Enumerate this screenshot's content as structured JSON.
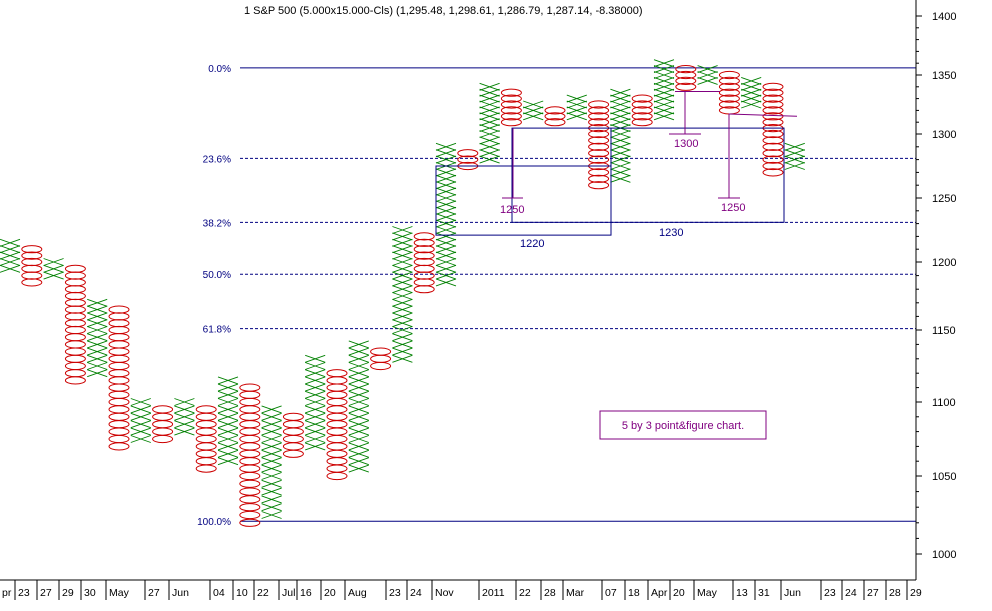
{
  "chart_data": {
    "type": "point-and-figure",
    "title": "1 S&P 500 (5.000x15.000-Cls) (1,295.48, 1,298.61, 1,286.79, 1,287.14, -8.38000)",
    "box_size": 5,
    "reversal": 3,
    "y_axis": {
      "position": "right",
      "ticks": [
        "1400",
        "1350",
        "1300",
        "1250",
        "1200",
        "1150",
        "1100",
        "1050",
        "1000"
      ]
    },
    "x_axis": {
      "tick_labels": [
        "pr",
        "23",
        "27",
        "29",
        "30",
        "May",
        "27",
        "Jun",
        "04",
        "10",
        "22",
        "Jul",
        "16",
        "20",
        "Aug",
        "23",
        "24",
        "Nov",
        "2011",
        "22",
        "28",
        "Mar",
        "07",
        "18",
        "Apr",
        "20",
        "May",
        "13",
        "31",
        "Jun",
        "23",
        "24",
        "27",
        "28",
        "29"
      ]
    },
    "fibonacci": {
      "levels": [
        {
          "label": "0.0%",
          "price": 1356,
          "style": "solid"
        },
        {
          "label": "23.6%",
          "price": 1281,
          "style": "dashed"
        },
        {
          "label": "38.2%",
          "price": 1231,
          "style": "dashed"
        },
        {
          "label": "50.0%",
          "price": 1191,
          "style": "dashed"
        },
        {
          "label": "61.8%",
          "price": 1151,
          "style": "dashed"
        },
        {
          "label": "100.0%",
          "price": 1021,
          "style": "solid"
        }
      ]
    },
    "columns": [
      {
        "type": "X",
        "low": 1195,
        "high": 1215
      },
      {
        "type": "O",
        "low": 1185,
        "high": 1210
      },
      {
        "type": "X",
        "low": 1190,
        "high": 1200
      },
      {
        "type": "O",
        "low": 1115,
        "high": 1195
      },
      {
        "type": "X",
        "low": 1120,
        "high": 1170
      },
      {
        "type": "O",
        "low": 1070,
        "high": 1165
      },
      {
        "type": "X",
        "low": 1075,
        "high": 1100
      },
      {
        "type": "O",
        "low": 1075,
        "high": 1095
      },
      {
        "type": "X",
        "low": 1080,
        "high": 1100
      },
      {
        "type": "O",
        "low": 1055,
        "high": 1095
      },
      {
        "type": "X",
        "low": 1060,
        "high": 1115
      },
      {
        "type": "O",
        "low": 1020,
        "high": 1110
      },
      {
        "type": "X",
        "low": 1025,
        "high": 1095
      },
      {
        "type": "O",
        "low": 1065,
        "high": 1090
      },
      {
        "type": "X",
        "low": 1070,
        "high": 1130
      },
      {
        "type": "O",
        "low": 1050,
        "high": 1120
      },
      {
        "type": "X",
        "low": 1055,
        "high": 1140
      },
      {
        "type": "O",
        "low": 1125,
        "high": 1135
      },
      {
        "type": "X",
        "low": 1130,
        "high": 1225
      },
      {
        "type": "O",
        "low": 1180,
        "high": 1220
      },
      {
        "type": "X",
        "low": 1185,
        "high": 1290
      },
      {
        "type": "O",
        "low": 1275,
        "high": 1285
      },
      {
        "type": "X",
        "low": 1280,
        "high": 1340
      },
      {
        "type": "O",
        "low": 1310,
        "high": 1335
      },
      {
        "type": "X",
        "low": 1315,
        "high": 1325
      },
      {
        "type": "O",
        "low": 1310,
        "high": 1320
      },
      {
        "type": "X",
        "low": 1315,
        "high": 1330
      },
      {
        "type": "O",
        "low": 1260,
        "high": 1325
      },
      {
        "type": "X",
        "low": 1265,
        "high": 1335
      },
      {
        "type": "O",
        "low": 1310,
        "high": 1330
      },
      {
        "type": "X",
        "low": 1315,
        "high": 1360
      },
      {
        "type": "O",
        "low": 1340,
        "high": 1355
      },
      {
        "type": "X",
        "low": 1345,
        "high": 1355
      },
      {
        "type": "O",
        "low": 1320,
        "high": 1350
      },
      {
        "type": "X",
        "low": 1325,
        "high": 1345
      },
      {
        "type": "O",
        "low": 1270,
        "high": 1340
      },
      {
        "type": "X",
        "low": 1275,
        "high": 1290
      }
    ],
    "annotations": {
      "text_box": "5 by 3 point&figure chart.",
      "labels": [
        {
          "text": "1250",
          "color": "#800080"
        },
        {
          "text": "1220",
          "color": "#000080"
        },
        {
          "text": "1300",
          "color": "#800080"
        },
        {
          "text": "1250",
          "color": "#800080"
        },
        {
          "text": "1230",
          "color": "#000080"
        }
      ]
    },
    "colors": {
      "x_marks": "#008000",
      "o_marks": "#cc0000",
      "fib_lines": "#000080",
      "annotation": "#800080"
    }
  }
}
